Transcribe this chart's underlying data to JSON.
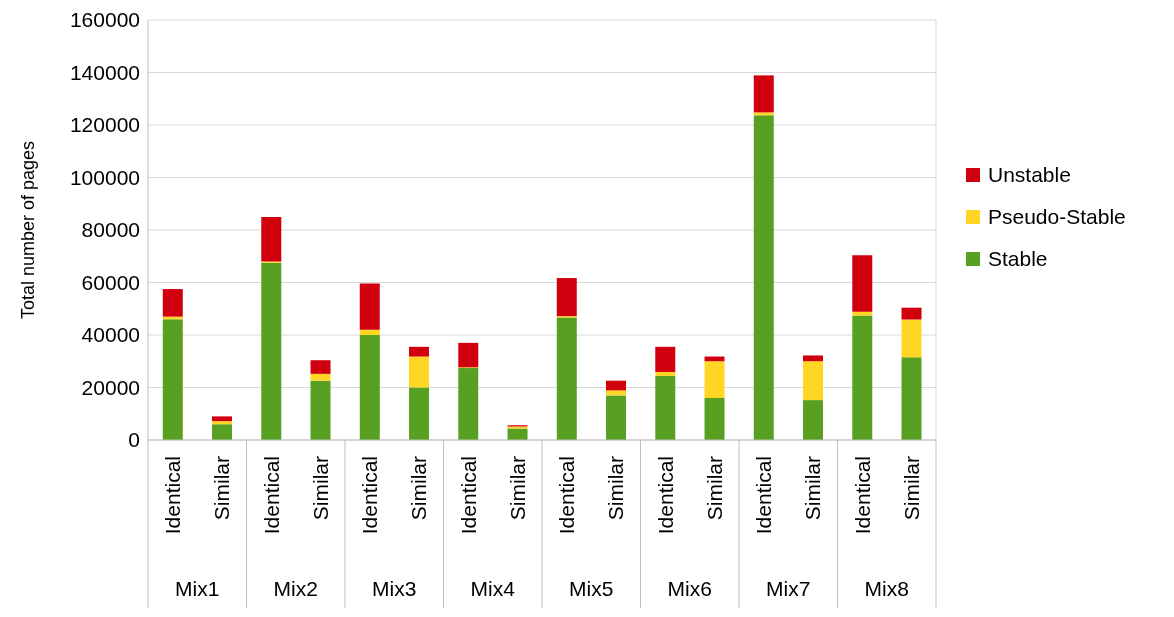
{
  "chart_data": {
    "type": "bar",
    "stacked": true,
    "ylabel": "Total number of pages",
    "categories": [
      "Identical",
      "Similar",
      "Identical",
      "Similar",
      "Identical",
      "Similar",
      "Identical",
      "Similar",
      "Identical",
      "Similar",
      "Identical",
      "Similar",
      "Identical",
      "Similar",
      "Identical",
      "Similar"
    ],
    "annotations": [
      "Mix1",
      "Mix2",
      "Mix3",
      "Mix4",
      "Mix5",
      "Mix6",
      "Mix7",
      "Mix8"
    ],
    "series": [
      {
        "name": "Stable",
        "color": "#58a021",
        "values": [
          46000,
          6000,
          67500,
          22600,
          40000,
          20000,
          27400,
          4400,
          46700,
          17000,
          24400,
          16000,
          123700,
          15200,
          47400,
          31500
        ]
      },
      {
        "name": "Pseudo-Stable",
        "color": "#ffd624",
        "values": [
          1000,
          1200,
          500,
          2600,
          2000,
          11800,
          300,
          700,
          500,
          1900,
          1500,
          14000,
          1100,
          14800,
          1500,
          14400
        ]
      },
      {
        "name": "Unstable",
        "color": "#d0000f",
        "values": [
          10500,
          1800,
          17000,
          5200,
          17600,
          3700,
          9300,
          500,
          14500,
          3700,
          9600,
          1800,
          14100,
          2200,
          21500,
          4500
        ]
      }
    ],
    "ylim": [
      0,
      160000
    ],
    "yticks": [
      0,
      20000,
      40000,
      60000,
      80000,
      100000,
      120000,
      140000,
      160000
    ],
    "grid": "y",
    "legend": "right"
  }
}
